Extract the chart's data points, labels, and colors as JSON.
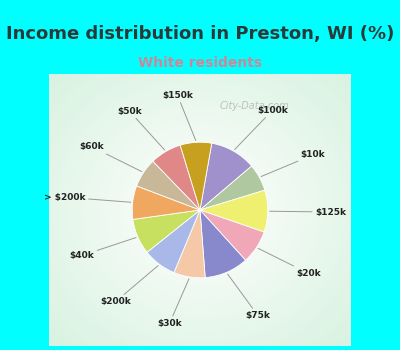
{
  "title": "Income distribution in Preston, WI (%)",
  "subtitle": "White residents",
  "background_color": "#00FFFF",
  "title_color": "#2a3a3a",
  "subtitle_color": "#cc8899",
  "labels": [
    "$100k",
    "$10k",
    "$125k",
    "$20k",
    "$75k",
    "$30k",
    "$200k",
    "$40k",
    "> $200k",
    "$60k",
    "$50k",
    "$150k"
  ],
  "sizes": [
    11.0,
    6.5,
    10.0,
    8.0,
    10.5,
    7.5,
    8.0,
    8.5,
    8.0,
    7.0,
    7.5,
    7.5
  ],
  "colors": [
    "#a090cc",
    "#b0c8a0",
    "#f0f070",
    "#f0a8b8",
    "#8888cc",
    "#f5c8a8",
    "#a8b8e8",
    "#c8e060",
    "#f0a860",
    "#c8b898",
    "#e08888",
    "#c8a020"
  ],
  "title_fontsize": 13,
  "subtitle_fontsize": 10,
  "watermark": "City-Data.com"
}
